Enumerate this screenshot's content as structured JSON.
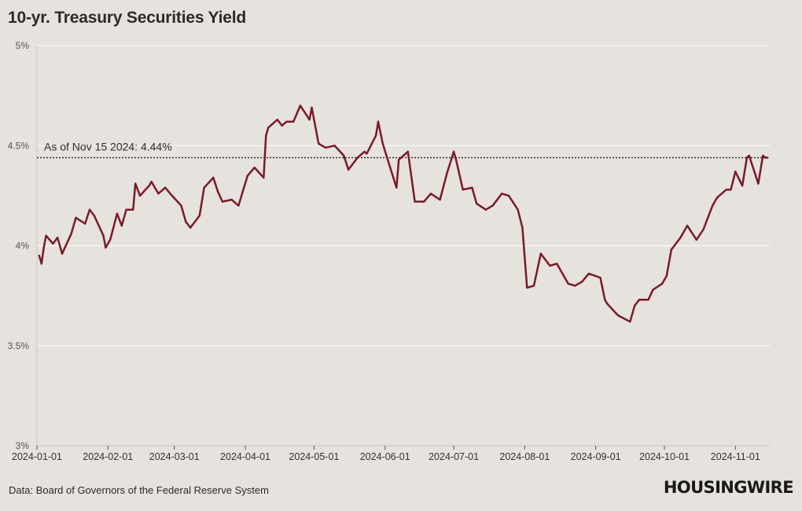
{
  "header": {
    "title": "10-yr. Treasury Securities Yield"
  },
  "footer": {
    "source": "Data: Board of Governors of the Federal Reserve System",
    "logo_text": "HOUSINGWIRE"
  },
  "colors": {
    "background": "#e6e2dd",
    "line": "#7b1a28",
    "grid": "#ffffff"
  },
  "chart_data": {
    "type": "line",
    "title": "10-yr. Treasury Securities Yield",
    "ylim": [
      3,
      5
    ],
    "xlim": [
      "2024-01-01",
      "2024-11-16"
    ],
    "yticks": [
      {
        "value": 3,
        "label": "3%"
      },
      {
        "value": 3.5,
        "label": "3.5%"
      },
      {
        "value": 4,
        "label": "4%"
      },
      {
        "value": 4.5,
        "label": "4.5%"
      },
      {
        "value": 5,
        "label": "5%"
      }
    ],
    "xticks": [
      "2024-01-01",
      "2024-02-01",
      "2024-03-01",
      "2024-04-01",
      "2024-05-01",
      "2024-06-01",
      "2024-07-01",
      "2024-08-01",
      "2024-09-01",
      "2024-10-01",
      "2024-11-01"
    ],
    "grid": true,
    "reference_line": {
      "value": 4.44,
      "style": "dotted",
      "label": "As of Nov 15 2024: 4.44%"
    },
    "series": [
      {
        "x": [
          "2024-01-02",
          "2024-01-03",
          "2024-01-04",
          "2024-01-05",
          "2024-01-08",
          "2024-01-10",
          "2024-01-12",
          "2024-01-16",
          "2024-01-18",
          "2024-01-22",
          "2024-01-24",
          "2024-01-26",
          "2024-01-30",
          "2024-01-31",
          "2024-02-02",
          "2024-02-05",
          "2024-02-07",
          "2024-02-09",
          "2024-02-12",
          "2024-02-13",
          "2024-02-15",
          "2024-02-19",
          "2024-02-20",
          "2024-02-23",
          "2024-02-26",
          "2024-02-29",
          "2024-03-04",
          "2024-03-06",
          "2024-03-08",
          "2024-03-12",
          "2024-03-14",
          "2024-03-18",
          "2024-03-20",
          "2024-03-22",
          "2024-03-26",
          "2024-03-29",
          "2024-04-02",
          "2024-04-05",
          "2024-04-09",
          "2024-04-10",
          "2024-04-11",
          "2024-04-15",
          "2024-04-17",
          "2024-04-19",
          "2024-04-22",
          "2024-04-25",
          "2024-04-29",
          "2024-04-30",
          "2024-05-01",
          "2024-05-03",
          "2024-05-06",
          "2024-05-10",
          "2024-05-14",
          "2024-05-16",
          "2024-05-20",
          "2024-05-23",
          "2024-05-24",
          "2024-05-28",
          "2024-05-29",
          "2024-05-31",
          "2024-06-03",
          "2024-06-06",
          "2024-06-07",
          "2024-06-11",
          "2024-06-14",
          "2024-06-18",
          "2024-06-21",
          "2024-06-25",
          "2024-06-28",
          "2024-07-01",
          "2024-07-02",
          "2024-07-05",
          "2024-07-09",
          "2024-07-11",
          "2024-07-15",
          "2024-07-18",
          "2024-07-22",
          "2024-07-25",
          "2024-07-29",
          "2024-07-31",
          "2024-08-02",
          "2024-08-05",
          "2024-08-08",
          "2024-08-12",
          "2024-08-15",
          "2024-08-16",
          "2024-08-20",
          "2024-08-23",
          "2024-08-26",
          "2024-08-29",
          "2024-09-03",
          "2024-09-05",
          "2024-09-06",
          "2024-09-10",
          "2024-09-11",
          "2024-09-16",
          "2024-09-18",
          "2024-09-20",
          "2024-09-24",
          "2024-09-26",
          "2024-09-30",
          "2024-10-02",
          "2024-10-04",
          "2024-10-08",
          "2024-10-11",
          "2024-10-15",
          "2024-10-18",
          "2024-10-22",
          "2024-10-24",
          "2024-10-28",
          "2024-10-30",
          "2024-11-01",
          "2024-11-04",
          "2024-11-06",
          "2024-11-07",
          "2024-11-11",
          "2024-11-13",
          "2024-11-14",
          "2024-11-15"
        ],
        "y": [
          3.95,
          3.91,
          3.99,
          4.05,
          4.01,
          4.04,
          3.96,
          4.06,
          4.14,
          4.11,
          4.18,
          4.15,
          4.05,
          3.99,
          4.03,
          4.16,
          4.1,
          4.18,
          4.18,
          4.31,
          4.25,
          4.3,
          4.32,
          4.26,
          4.29,
          4.25,
          4.2,
          4.12,
          4.09,
          4.15,
          4.29,
          4.34,
          4.27,
          4.22,
          4.23,
          4.2,
          4.35,
          4.39,
          4.34,
          4.55,
          4.59,
          4.63,
          4.6,
          4.62,
          4.62,
          4.7,
          4.63,
          4.69,
          4.63,
          4.51,
          4.49,
          4.5,
          4.45,
          4.38,
          4.44,
          4.47,
          4.46,
          4.55,
          4.62,
          4.51,
          4.4,
          4.29,
          4.43,
          4.47,
          4.22,
          4.22,
          4.26,
          4.23,
          4.36,
          4.47,
          4.43,
          4.28,
          4.29,
          4.21,
          4.18,
          4.2,
          4.26,
          4.25,
          4.18,
          4.09,
          3.79,
          3.8,
          3.96,
          3.9,
          3.91,
          3.89,
          3.81,
          3.8,
          3.82,
          3.86,
          3.84,
          3.73,
          3.71,
          3.66,
          3.65,
          3.62,
          3.7,
          3.73,
          3.73,
          3.78,
          3.81,
          3.85,
          3.98,
          4.04,
          4.1,
          4.03,
          4.08,
          4.2,
          4.24,
          4.28,
          4.28,
          4.37,
          4.3,
          4.44,
          4.45,
          4.31,
          4.45,
          4.44,
          4.44
        ]
      }
    ]
  }
}
